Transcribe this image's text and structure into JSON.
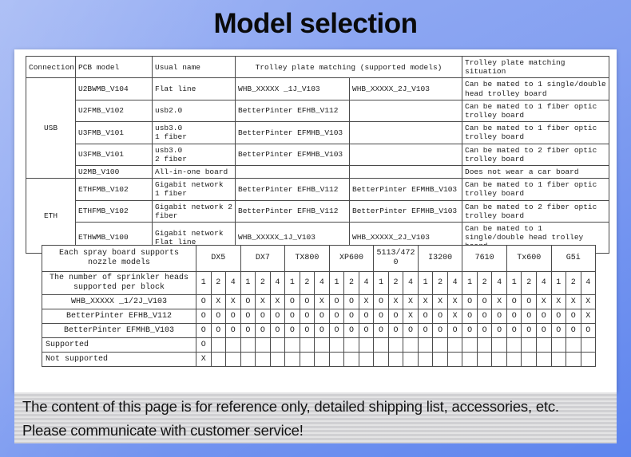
{
  "title": "Model selection",
  "colors": {
    "background_top": "#98AFF3",
    "background_bottom": "#5E85EE",
    "panel": "#FFFFFF",
    "footer_band": "#D8D8DA",
    "table_border": "#4A4A4A",
    "text": "#1C1C1C"
  },
  "board_table": {
    "headers": {
      "connection": "Connection",
      "pcb_model": "PCB model",
      "usual_name": "Usual name",
      "trolley_matching": "Trolley plate matching (supported models)",
      "situation": "Trolley plate matching\nsituation"
    },
    "groups": [
      {
        "label": "USB",
        "rowspan": 5
      },
      {
        "label": "ETH",
        "rowspan": 3
      }
    ],
    "rows": [
      {
        "pcb_model": "U2BWMB_V104",
        "usual_name": "Flat line",
        "trolley_1": "WHB_XXXXX _1J_V103",
        "trolley_2": "WHB_XXXXX_2J_V103",
        "situation": "Can be mated to 1 single/double\nhead trolley board"
      },
      {
        "pcb_model": "U2FMB_V102",
        "usual_name": "usb2.0",
        "trolley_1": "BetterPinter EFHB_V112",
        "trolley_2": "",
        "situation": "Can be mated to 1 fiber optic\ntrolley board"
      },
      {
        "pcb_model": "U3FMB_V101",
        "usual_name": "usb3.0\n1 fiber",
        "trolley_1": "BetterPinter EFMHB_V103",
        "trolley_2": "",
        "situation": "Can be mated to 1 fiber optic\ntrolley board"
      },
      {
        "pcb_model": "U3FMB_V101",
        "usual_name": "usb3.0\n2 fiber",
        "trolley_1": "BetterPinter EFMHB_V103",
        "trolley_2": "",
        "situation": "Can be mated to 2 fiber optic\ntrolley board"
      },
      {
        "pcb_model": "U2MB_V100",
        "usual_name": "All-in-one board",
        "trolley_1": "",
        "trolley_2": "",
        "situation": "Does not wear a car board"
      },
      {
        "pcb_model": "ETHFMB_V102",
        "usual_name": "Gigabit network\n1 fiber",
        "trolley_1": "BetterPinter EFHB_V112",
        "trolley_2": "BetterPinter EFMHB_V103",
        "situation": "Can be mated to 1 fiber optic\ntrolley board"
      },
      {
        "pcb_model": "ETHFMB_V102",
        "usual_name": "Gigabit network 2\nfiber",
        "trolley_1": "BetterPinter EFHB_V112",
        "trolley_2": "BetterPinter EFMHB_V103",
        "situation": "Can be mated to 2 fiber optic\ntrolley board"
      },
      {
        "pcb_model": "ETHWMB_V100",
        "usual_name": "Gigabit network\nFlat line",
        "trolley_1": "WHB_XXXXX_1J_V103",
        "trolley_2": "WHB_XXXXX_2J_V103",
        "situation": "Can be mated to 1\nsingle/double head trolley\nboard"
      }
    ]
  },
  "nozzle_table": {
    "corner_label": "Each spray board supports\nnozzle models",
    "count_label": "The number of sprinkler heads\nsupported per block",
    "models": [
      "DX5",
      "DX7",
      "TX800",
      "XP600",
      "5113/4720",
      "I3200",
      "7610",
      "Tx600",
      "G5i"
    ],
    "heads_per_block": [
      "1",
      "2",
      "4"
    ],
    "rows": [
      {
        "label": "WHB_XXXXX _1/2J_V103",
        "values": [
          "O",
          "X",
          "X",
          "O",
          "X",
          "X",
          "O",
          "O",
          "X",
          "O",
          "O",
          "X",
          "O",
          "X",
          "X",
          "X",
          "X",
          "X",
          "O",
          "O",
          "X",
          "O",
          "O",
          "X",
          "X",
          "X",
          "X"
        ]
      },
      {
        "label": "BetterPinter EFHB_V112",
        "values": [
          "O",
          "O",
          "O",
          "O",
          "O",
          "O",
          "O",
          "O",
          "O",
          "O",
          "O",
          "O",
          "O",
          "O",
          "X",
          "O",
          "O",
          "X",
          "O",
          "O",
          "O",
          "O",
          "O",
          "O",
          "O",
          "O",
          "X"
        ]
      },
      {
        "label": "BetterPinter EFMHB_V103",
        "values": [
          "O",
          "O",
          "O",
          "O",
          "O",
          "O",
          "O",
          "O",
          "O",
          "O",
          "O",
          "O",
          "O",
          "O",
          "O",
          "O",
          "O",
          "O",
          "O",
          "O",
          "O",
          "O",
          "O",
          "O",
          "O",
          "O",
          "O"
        ]
      }
    ],
    "legend_rows": [
      {
        "label": "Supported",
        "symbol": "O"
      },
      {
        "label": "Not supported",
        "symbol": "X"
      }
    ]
  },
  "footer": {
    "line1": "The content of this page is for reference only, detailed shipping list, accessories, etc.",
    "line2": "Please communicate with customer service!"
  }
}
